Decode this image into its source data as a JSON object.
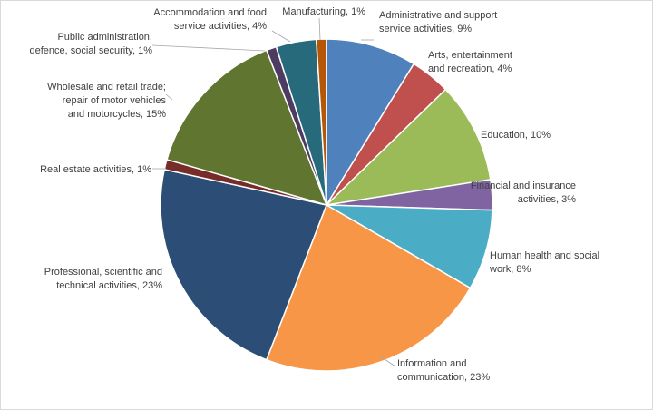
{
  "chart_data": {
    "type": "pie",
    "title": "",
    "start_angle_deg": 0,
    "direction": "clockwise",
    "slices": [
      {
        "name": "Administrative and support service activities",
        "value": 9,
        "color": "#4f81bd",
        "label_lines": [
          "Administrative and support",
          "service activities, 9%"
        ]
      },
      {
        "name": "Arts, entertainment and recreation",
        "value": 4,
        "color": "#c0504d",
        "label_lines": [
          "Arts, entertainment",
          "and recreation, 4%"
        ]
      },
      {
        "name": "Education",
        "value": 10,
        "color": "#9bbb59",
        "label_lines": [
          "Education, 10%"
        ]
      },
      {
        "name": "Financial and insurance activities",
        "value": 3,
        "color": "#8064a2",
        "label_lines": [
          "Financial and insurance",
          "activities, 3%"
        ]
      },
      {
        "name": "Human health and social work",
        "value": 8,
        "color": "#4bacc6",
        "label_lines": [
          "Human health and social",
          "work, 8%"
        ]
      },
      {
        "name": "Information and communication",
        "value": 23,
        "color": "#f79646",
        "label_lines": [
          "Information and",
          "communication, 23%"
        ]
      },
      {
        "name": "Professional, scientific and technical activities",
        "value": 23,
        "color": "#2c4d75",
        "label_lines": [
          "Professional, scientific and",
          "technical activities, 23%"
        ]
      },
      {
        "name": "Real estate activities",
        "value": 1,
        "color": "#772c2a",
        "label_lines": [
          "Real estate activities, 1%"
        ]
      },
      {
        "name": "Wholesale and retail trade; repair of motor vehicles and motorcycles",
        "value": 15,
        "color": "#5f7530",
        "label_lines": [
          "Wholesale and retail trade;",
          "repair of motor vehicles",
          "and motorcycles, 15%"
        ]
      },
      {
        "name": "Public administration, defence, social security",
        "value": 1,
        "color": "#4d3b62",
        "label_lines": [
          "Public administration,",
          "defence, social security, 1%"
        ]
      },
      {
        "name": "Accommodation and food service activities",
        "value": 4,
        "color": "#276a7c",
        "label_lines": [
          "Accommodation and food",
          "service activities, 4%"
        ]
      },
      {
        "name": "Manufacturing",
        "value": 1,
        "color": "#b65708",
        "label_lines": [
          "Manufacturing, 1%"
        ]
      }
    ]
  }
}
